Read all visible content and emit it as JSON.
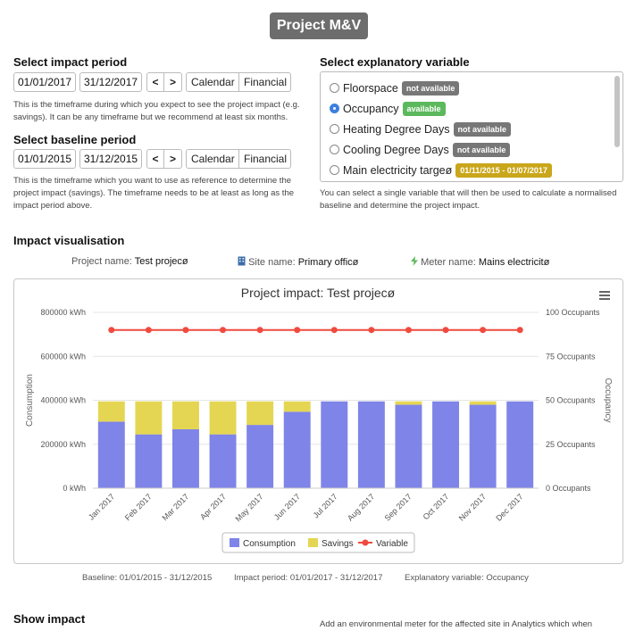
{
  "page": {
    "title": "Project M&V"
  },
  "impact_period": {
    "heading": "Select impact period",
    "start": "01/01/2017",
    "end": "31/12/2017",
    "prev": "<",
    "next": ">",
    "calendar": "Calendar",
    "financial": "Financial",
    "help_1": "This is the timeframe during which you expect to see the project impact (e.g.",
    "help_2": "savings). It can be any timeframe but we recommend at least six months."
  },
  "baseline_period": {
    "heading": "Select baseline period",
    "start": "01/01/2015",
    "end": "31/12/2015",
    "prev": "<",
    "next": ">",
    "calendar": "Calendar",
    "financial": "Financial",
    "help_1": "This is the timeframe which you want to use as reference to determine the",
    "help_2": "project impact (savings). The timeframe needs to be at least as long as the",
    "help_3": "impact period above."
  },
  "explanatory": {
    "heading": "Select explanatory variable",
    "options": [
      {
        "label": "Floorspace",
        "badge": "not available",
        "badge_color": "#777777",
        "selected": false
      },
      {
        "label": "Occupancy",
        "badge": "available",
        "badge_color": "#5cb85c",
        "selected": true
      },
      {
        "label": "Heating Degree Days",
        "badge": "not available",
        "badge_color": "#777777",
        "selected": false
      },
      {
        "label": "Cooling Degree Days",
        "badge": "not available",
        "badge_color": "#777777",
        "selected": false
      },
      {
        "label": "Main electricity targeø",
        "badge": "01/11/2015 - 01/07/2017",
        "badge_color": "#c9a61a",
        "selected": false
      }
    ],
    "help_1": "You can select a single variable that will then be used to calculate a normalised",
    "help_2": "baseline and determine the project impact."
  },
  "visualisation": {
    "heading": "Impact visualisation",
    "project_label": "Project name:",
    "project_value": "Test projecø",
    "site_label": "Site name:",
    "site_value": "Primary officø",
    "meter_label": "Meter name:",
    "meter_value": "Mains electricitø"
  },
  "footer": {
    "baseline": "Baseline: 01/01/2015 - 31/12/2015",
    "impact_period": "Impact period: 01/01/2017 - 31/12/2017",
    "explanatory": "Explanatory variable: Occupancy"
  },
  "show_impact": {
    "heading": "Show impact",
    "note": "Add an environmental meter for the affected site in Analytics which when"
  },
  "chart_data": {
    "type": "bar",
    "title": "Project impact: Test projecø",
    "categories": [
      "Jan 2017",
      "Feb 2017",
      "Mar 2017",
      "Apr 2017",
      "May 2017",
      "Jun 2017",
      "Jul 2017",
      "Aug 2017",
      "Sep 2017",
      "Oct 2017",
      "Nov 2017",
      "Dec 2017"
    ],
    "stacked": true,
    "series": [
      {
        "name": "Consumption",
        "color": "#7f84e8",
        "axis": "left",
        "values": [
          303000,
          245000,
          268000,
          245000,
          288000,
          348000,
          395000,
          395000,
          380000,
          395000,
          380000,
          395000
        ]
      },
      {
        "name": "Savings",
        "color": "#e4d652",
        "axis": "left",
        "values": [
          92000,
          150000,
          127000,
          150000,
          107000,
          47000,
          0,
          0,
          15000,
          0,
          15000,
          0
        ]
      },
      {
        "name": "Variable",
        "color": "#f04a3e",
        "axis": "right",
        "type": "line",
        "values": [
          90,
          90,
          90,
          90,
          90,
          90,
          90,
          90,
          90,
          90,
          90,
          90
        ]
      }
    ],
    "ylabel": "Consumption",
    "ylim": [
      0,
      800000
    ],
    "yticks": [
      "0 kWh",
      "200000 kWh",
      "400000 kWh",
      "600000 kWh",
      "800000 kWh"
    ],
    "y2label": "Occupancy",
    "y2lim": [
      0,
      100
    ],
    "y2ticks": [
      "0 Occupants",
      "25 Occupants",
      "50 Occupants",
      "75 Occupants",
      "100 Occupants"
    ],
    "grid": true,
    "legend": "bottom-center",
    "menu_icon": "hamburger-menu-icon"
  }
}
